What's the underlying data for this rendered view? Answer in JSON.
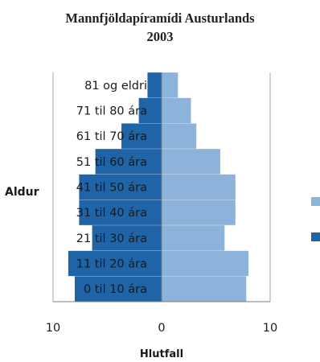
{
  "chart_data": {
    "type": "bar",
    "orientation": "horizontal",
    "title": [
      "Mannfjöldapíramídi  Austurlands",
      "2003"
    ],
    "ylabel": "Aldur",
    "xlabel": "Hlutfall",
    "categories": [
      "0 til 10 ára",
      "11 til 20 ára",
      "21 til 30 ára",
      "31 til 40 ára",
      "41 til 50 ára",
      "51 til 60 ára",
      "61 til 70 ára",
      "71 til 80 ára",
      "81 og eldri"
    ],
    "series": [
      {
        "color": "#1f64a6",
        "side": "left",
        "values": [
          8.0,
          8.6,
          6.4,
          7.6,
          7.6,
          6.1,
          3.7,
          2.1,
          1.3
        ]
      },
      {
        "color": "#8eb3da",
        "side": "right",
        "values": [
          7.8,
          8.0,
          5.8,
          6.8,
          6.8,
          5.4,
          3.2,
          2.7,
          1.5
        ]
      }
    ],
    "xlim": [
      -10,
      10
    ],
    "x_tick_values": [
      -10,
      0,
      10
    ],
    "x_tick_labels": [
      "10",
      "0",
      "10"
    ],
    "legend_position": "right",
    "grid": true
  }
}
